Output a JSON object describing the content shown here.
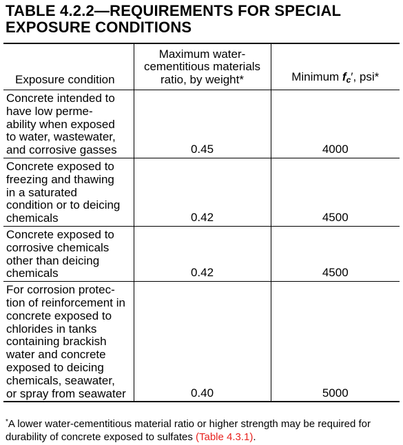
{
  "title": {
    "line1": "TABLE 4.2.2—REQUIREMENTS FOR SPECIAL",
    "line2": "EXPOSURE CONDITIONS"
  },
  "columns": {
    "exposure": "Exposure condition",
    "ratio_lines": [
      "Maximum water-",
      "cementitious materials",
      "ratio, by weight*"
    ],
    "strength_prefix": "Minimum ",
    "strength_symbol": "f",
    "strength_subscript": "c",
    "strength_prime": "′",
    "strength_suffix": ", psi*"
  },
  "rows": [
    {
      "condition_lines": [
        "Concrete intended to",
        "have low perme-",
        "ability when exposed",
        "to water, wastewater,",
        "and corrosive gasses"
      ],
      "ratio": "0.45",
      "strength": "4000"
    },
    {
      "condition_lines": [
        "Concrete exposed to",
        "freezing and thawing",
        "in a saturated",
        "condition or to deicing",
        "chemicals"
      ],
      "ratio": "0.42",
      "strength": "4500"
    },
    {
      "condition_lines": [
        "Concrete exposed to",
        "corrosive chemicals",
        "other than deicing",
        "chemicals"
      ],
      "ratio": "0.42",
      "strength": "4500"
    },
    {
      "condition_lines": [
        "For corrosion protec-",
        "tion of reinforcement in",
        "concrete exposed to",
        "chlorides in tanks",
        "containing brackish",
        "water and concrete",
        "exposed to deicing",
        "chemicals, seawater,",
        "or spray from seawater"
      ],
      "ratio": "0.40",
      "strength": "5000"
    }
  ],
  "footnote": {
    "marker": "*",
    "line1": "A lower water-cementitious material ratio or higher strength may be required for",
    "line2": "durability of concrete exposed to sulfates ",
    "reference": "(Table 4.3.1)",
    "end": "."
  },
  "colors": {
    "reference_link": "#e8211d"
  }
}
